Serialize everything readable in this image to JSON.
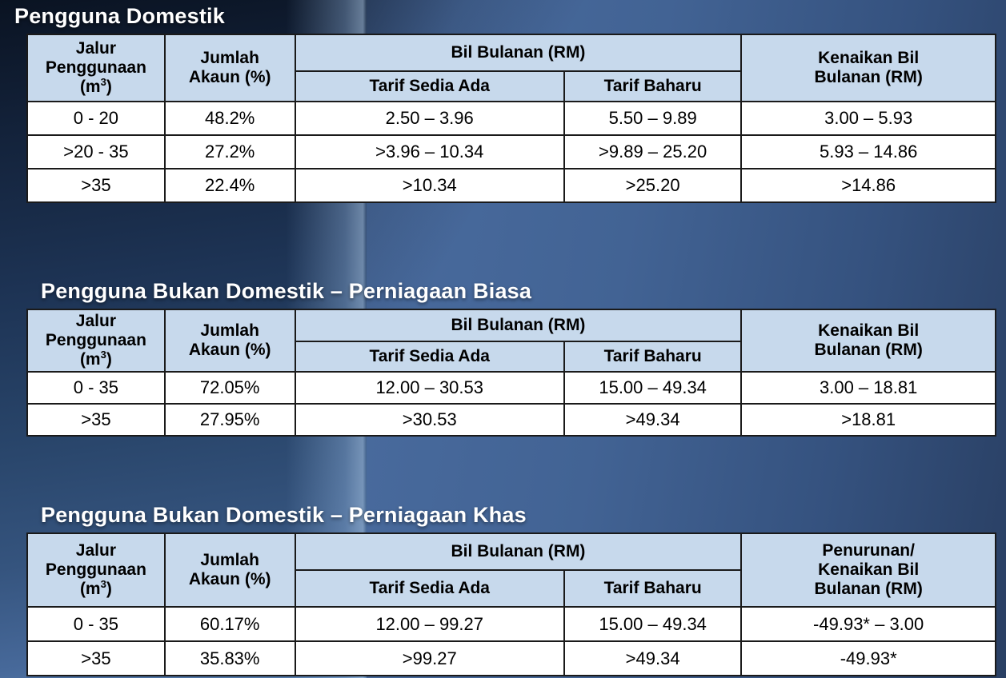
{
  "colors": {
    "header-fill": "#c7d9ec",
    "table-border": "#1a1a1a",
    "cell-bg": "#ffffff",
    "title-text": "#ffffff",
    "body-text": "#000000"
  },
  "tables": [
    {
      "title": "Pengguna Domestik",
      "header": {
        "usage_l1": "Jalur",
        "usage_l2a": "Penggunaan (m",
        "usage_sup": "3",
        "usage_l2b": ")",
        "accounts_l1": "Jumlah",
        "accounts_l2": "Akaun (%)",
        "bill_group": "Bil Bulanan (RM)",
        "tariff_existing": "Tarif Sedia Ada",
        "tariff_new": "Tarif Baharu",
        "change_lines": [
          "Kenaikan Bil",
          "Bulanan (RM)"
        ]
      },
      "rows": [
        [
          "0 - 20",
          "48.2%",
          "2.50 – 3.96",
          "5.50 – 9.89",
          "3.00 – 5.93"
        ],
        [
          ">20 - 35",
          "27.2%",
          ">3.96 – 10.34",
          ">9.89 – 25.20",
          "5.93 – 14.86"
        ],
        [
          ">35",
          "22.4%",
          ">10.34",
          ">25.20",
          ">14.86"
        ]
      ]
    },
    {
      "title": "Pengguna Bukan Domestik – Perniagaan Biasa",
      "header": {
        "usage_l1": "Jalur",
        "usage_l2a": "Penggunaan (m",
        "usage_sup": "3",
        "usage_l2b": ")",
        "accounts_l1": "Jumlah",
        "accounts_l2": "Akaun (%)",
        "bill_group": "Bil Bulanan (RM)",
        "tariff_existing": "Tarif Sedia Ada",
        "tariff_new": "Tarif Baharu",
        "change_lines": [
          "Kenaikan Bil",
          "Bulanan (RM)"
        ]
      },
      "rows": [
        [
          "0 - 35",
          "72.05%",
          "12.00 – 30.53",
          "15.00 – 49.34",
          "3.00 – 18.81"
        ],
        [
          ">35",
          "27.95%",
          ">30.53",
          ">49.34",
          ">18.81"
        ]
      ]
    },
    {
      "title": "Pengguna Bukan Domestik – Perniagaan Khas",
      "header": {
        "usage_l1": "Jalur",
        "usage_l2a": "Penggunaan (m",
        "usage_sup": "3",
        "usage_l2b": ")",
        "accounts_l1": "Jumlah",
        "accounts_l2": "Akaun (%)",
        "bill_group": "Bil Bulanan (RM)",
        "tariff_existing": "Tarif Sedia Ada",
        "tariff_new": "Tarif Baharu",
        "change_lines": [
          "Penurunan/",
          "Kenaikan Bil",
          "Bulanan (RM)"
        ]
      },
      "rows": [
        [
          "0 - 35",
          "60.17%",
          "12.00 – 99.27",
          "15.00 – 49.34",
          "-49.93* – 3.00"
        ],
        [
          ">35",
          "35.83%",
          ">99.27",
          ">49.34",
          "-49.93*"
        ]
      ]
    }
  ]
}
